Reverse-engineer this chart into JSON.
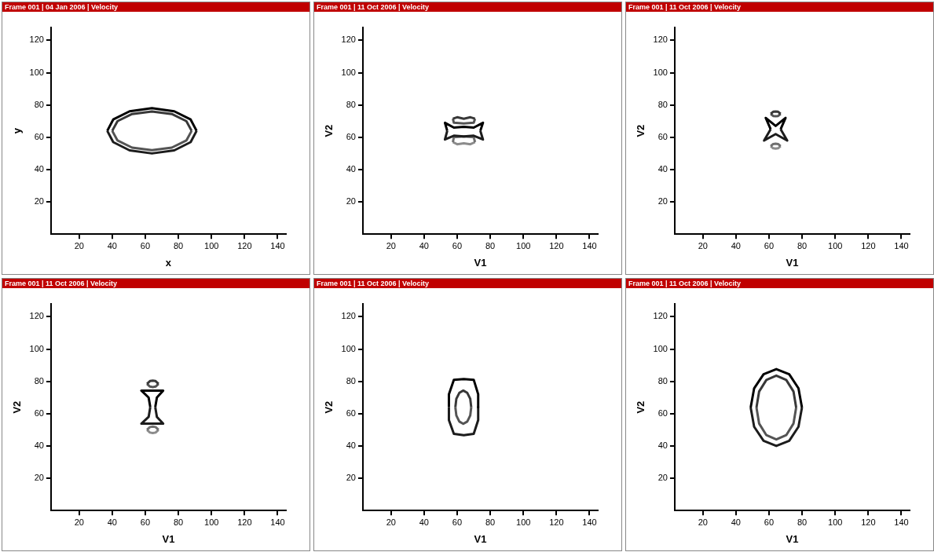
{
  "chart_data": [
    {
      "type": "line",
      "title": "Frame 001 | 04 Jan 2006 | Velocity",
      "xlabel": "x",
      "ylabel": "y",
      "xlim": [
        3,
        145
      ],
      "ylim": [
        0,
        128
      ],
      "xticks": [
        20,
        40,
        60,
        80,
        100,
        120,
        140
      ],
      "yticks": [
        20,
        40,
        60,
        80,
        100,
        120
      ],
      "grid": false,
      "marker": "none",
      "series": [
        {
          "color": "#000000",
          "x": [
            91,
            87.4,
            77.5,
            64,
            50.5,
            40.6,
            37
          ],
          "values": [
            64,
            71,
            76.1,
            78,
            76.1,
            71,
            64
          ]
        },
        {
          "color": "#1c1c1c",
          "x": [
            37,
            40.6,
            50.5,
            64,
            77.5,
            87.4,
            91
          ],
          "values": [
            64,
            57,
            51.9,
            50,
            51.9,
            57,
            64
          ]
        },
        {
          "color": "#383838",
          "x": [
            88,
            84.8,
            76,
            64,
            52,
            43.2,
            40
          ],
          "values": [
            64,
            70,
            74.4,
            76,
            74.4,
            70,
            64
          ]
        },
        {
          "color": "#545454",
          "x": [
            40,
            43.2,
            52,
            64,
            76,
            84.8,
            88
          ],
          "values": [
            64,
            58,
            53.6,
            52,
            53.6,
            58,
            64
          ]
        }
      ]
    },
    {
      "type": "line",
      "title": "Frame 001 | 11 Oct 2006 | Velocity",
      "xlabel": "V1",
      "ylabel": "V2",
      "xlim": [
        3,
        145
      ],
      "ylim": [
        0,
        128
      ],
      "xticks": [
        20,
        40,
        60,
        80,
        100,
        120,
        140
      ],
      "yticks": [
        20,
        40,
        60,
        80,
        100,
        120
      ],
      "grid": false,
      "marker": "none",
      "series": [
        {
          "color": "#000000",
          "x": [
            54,
            52.6,
            58,
            64,
            70,
            75.6,
            74
          ],
          "values": [
            64,
            69,
            66,
            66.5,
            66,
            69,
            64
          ]
        },
        {
          "color": "#1c1c1c",
          "x": [
            74,
            75.6,
            70,
            64,
            58,
            52.6,
            54
          ],
          "values": [
            64,
            58.6,
            61,
            60.5,
            61,
            58.6,
            64
          ]
        },
        {
          "color": "#383838",
          "x": [
            57.4,
            60,
            64,
            68,
            70.8
          ],
          "values": [
            71.5,
            72.4,
            71.5,
            72.4,
            71.5
          ]
        },
        {
          "color": "#545454",
          "x": [
            70.8,
            70,
            64,
            58,
            57.4
          ],
          "values": [
            71.5,
            69,
            68.6,
            69,
            71.5
          ]
        },
        {
          "color": "#707070",
          "x": [
            57.4,
            58,
            64,
            70,
            70.8
          ],
          "values": [
            57,
            60,
            60.5,
            60,
            57
          ]
        },
        {
          "color": "#8c8c8c",
          "x": [
            70.8,
            68,
            64,
            60,
            57.4
          ],
          "values": [
            57,
            55.7,
            56.3,
            55.7,
            57
          ]
        }
      ]
    },
    {
      "type": "line",
      "title": "Frame 001 | 11 Oct 2006 | Velocity",
      "xlabel": "V1",
      "ylabel": "V2",
      "xlim": [
        3,
        145
      ],
      "ylim": [
        0,
        128
      ],
      "xticks": [
        20,
        40,
        60,
        80,
        100,
        120,
        140
      ],
      "yticks": [
        20,
        40,
        60,
        80,
        100,
        120
      ],
      "grid": false,
      "marker": "none",
      "series": [
        {
          "color": "#000000",
          "x": [
            61,
            58,
            64,
            70,
            67
          ],
          "values": [
            65,
            72,
            67,
            72,
            65
          ]
        },
        {
          "color": "#1c1c1c",
          "x": [
            67,
            71,
            64,
            57,
            61
          ],
          "values": [
            65,
            58,
            62,
            58,
            65
          ]
        },
        {
          "color": "#383838",
          "x": [
            67,
            65.5,
            64,
            62.5,
            61
          ],
          "values": [
            74.5,
            75.8,
            76,
            75.8,
            74.5
          ]
        },
        {
          "color": "#545454",
          "x": [
            61,
            62.5,
            64,
            65.5,
            67
          ],
          "values": [
            74.5,
            73.2,
            73,
            73.2,
            74.5
          ]
        },
        {
          "color": "#707070",
          "x": [
            67,
            65.5,
            64,
            62.5,
            61
          ],
          "values": [
            54.5,
            55.8,
            56,
            55.8,
            54.5
          ]
        },
        {
          "color": "#8c8c8c",
          "x": [
            61,
            62.5,
            64,
            65.5,
            67
          ],
          "values": [
            54.5,
            53.2,
            53,
            53.2,
            54.5
          ]
        }
      ]
    },
    {
      "type": "line",
      "title": "Frame 001 | 11 Oct 2006 | Velocity",
      "xlabel": "V1",
      "ylabel": "V2",
      "xlim": [
        3,
        145
      ],
      "ylim": [
        0,
        128
      ],
      "xticks": [
        20,
        40,
        60,
        80,
        100,
        120,
        140
      ],
      "yticks": [
        20,
        40,
        60,
        80,
        100,
        120
      ],
      "grid": false,
      "marker": "none",
      "series": [
        {
          "color": "#000000",
          "x": [
            63,
            62,
            57.6,
            70.8,
            67,
            66
          ],
          "values": [
            64,
            70,
            74.3,
            74.3,
            70,
            64
          ]
        },
        {
          "color": "#1c1c1c",
          "x": [
            66,
            67,
            70.8,
            57.6,
            62,
            63
          ],
          "values": [
            64,
            58,
            53.8,
            53.8,
            58,
            64
          ]
        },
        {
          "color": "#383838",
          "x": [
            68,
            66.2,
            64.5,
            62.8,
            61
          ],
          "values": [
            78.5,
            80.2,
            80.5,
            80.2,
            78.5
          ]
        },
        {
          "color": "#545454",
          "x": [
            61,
            62.8,
            64.5,
            66.2,
            68
          ],
          "values": [
            78.5,
            76.8,
            76.5,
            76.8,
            78.5
          ]
        },
        {
          "color": "#707070",
          "x": [
            68,
            66.2,
            64.5,
            62.8,
            61
          ],
          "values": [
            50,
            51.7,
            52,
            51.7,
            50
          ]
        },
        {
          "color": "#8c8c8c",
          "x": [
            61,
            62.8,
            64.5,
            66.2,
            68
          ],
          "values": [
            50,
            48.3,
            48,
            48.3,
            50
          ]
        }
      ]
    },
    {
      "type": "line",
      "title": "Frame 001 | 11 Oct 2006 | Velocity",
      "xlabel": "V1",
      "ylabel": "V2",
      "xlim": [
        3,
        145
      ],
      "ylim": [
        0,
        128
      ],
      "xticks": [
        20,
        40,
        60,
        80,
        100,
        120,
        140
      ],
      "yticks": [
        20,
        40,
        60,
        80,
        100,
        120
      ],
      "grid": false,
      "marker": "none",
      "series": [
        {
          "color": "#000000",
          "x": [
            55,
            55,
            58,
            64,
            70,
            72.7,
            72.7
          ],
          "values": [
            64,
            72,
            81,
            81.4,
            81,
            72,
            64
          ]
        },
        {
          "color": "#1c1c1c",
          "x": [
            72.7,
            72.7,
            70,
            64,
            58,
            55,
            55
          ],
          "values": [
            64,
            56,
            47.5,
            46.7,
            47.5,
            56,
            64
          ]
        },
        {
          "color": "#383838",
          "x": [
            68.5,
            67.9,
            66.1,
            63.7,
            61.3,
            59.5,
            58.9
          ],
          "values": [
            64,
            69.2,
            72.9,
            74.3,
            72.9,
            69.2,
            64
          ]
        },
        {
          "color": "#545454",
          "x": [
            58.9,
            59.5,
            61.3,
            63.7,
            66.1,
            67.9,
            68.5
          ],
          "values": [
            64,
            58.9,
            55.1,
            53.7,
            55.1,
            58.9,
            64
          ]
        }
      ]
    },
    {
      "type": "line",
      "title": "Frame 001 | 11 Oct 2006 | Velocity",
      "xlabel": "V1",
      "ylabel": "V2",
      "xlim": [
        3,
        145
      ],
      "ylim": [
        0,
        128
      ],
      "xticks": [
        20,
        40,
        60,
        80,
        100,
        120,
        140
      ],
      "yticks": [
        20,
        40,
        60,
        80,
        100,
        120
      ],
      "grid": false,
      "marker": "none",
      "series": [
        {
          "color": "#000000",
          "x": [
            79.9,
            77.8,
            72.2,
            64.4,
            56.7,
            51,
            48.9
          ],
          "values": [
            63.8,
            75.7,
            84.4,
            87.6,
            84.4,
            75.7,
            63.8
          ]
        },
        {
          "color": "#1c1c1c",
          "x": [
            48.9,
            51,
            56.7,
            64.4,
            72.2,
            77.8,
            79.9
          ],
          "values": [
            63.8,
            51.9,
            43.2,
            40,
            43.2,
            51.9,
            63.8
          ]
        },
        {
          "color": "#383838",
          "x": [
            76.4,
            74.8,
            70.4,
            64.4,
            58.4,
            54,
            52.4
          ],
          "values": [
            63.8,
            73.7,
            80.9,
            83.6,
            80.9,
            73.7,
            63.8
          ]
        },
        {
          "color": "#545454",
          "x": [
            52.4,
            54,
            58.4,
            64.4,
            70.4,
            74.8,
            76.4
          ],
          "values": [
            63.8,
            53.9,
            46.7,
            44,
            46.7,
            53.9,
            63.8
          ]
        }
      ]
    }
  ]
}
